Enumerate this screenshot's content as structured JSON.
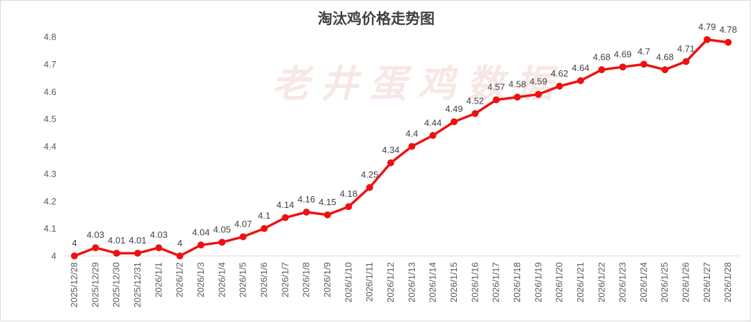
{
  "watermark": "老井蛋鸡数据",
  "chart_data": {
    "type": "line",
    "title": "淘汰鸡价格走势图",
    "xlabel": "",
    "ylabel": "",
    "ylim": [
      4,
      4.8
    ],
    "yticks": [
      "4",
      "4.1",
      "4.2",
      "4.3",
      "4.4",
      "4.5",
      "4.6",
      "4.7",
      "4.8"
    ],
    "grid": false,
    "legend": "none",
    "line_color": "#ee1111",
    "categories": [
      "2025/12/28",
      "2025/12/29",
      "2025/12/30",
      "2025/12/31",
      "2026/1/1",
      "2026/1/2",
      "2026/1/3",
      "2026/1/4",
      "2026/1/5",
      "2026/1/6",
      "2026/1/7",
      "2026/1/8",
      "2026/1/9",
      "2026/1/10",
      "2026/1/11",
      "2026/1/12",
      "2026/1/13",
      "2026/1/14",
      "2026/1/15",
      "2026/1/16",
      "2026/1/17",
      "2026/1/18",
      "2026/1/19",
      "2026/1/20",
      "2026/1/21",
      "2026/1/22",
      "2026/1/23",
      "2026/1/24",
      "2026/1/25",
      "2026/1/26",
      "2026/1/27",
      "2026/1/28"
    ],
    "values": [
      4,
      4.03,
      4.01,
      4.01,
      4.03,
      4,
      4.04,
      4.05,
      4.07,
      4.1,
      4.14,
      4.16,
      4.15,
      4.18,
      4.25,
      4.34,
      4.4,
      4.44,
      4.49,
      4.52,
      4.57,
      4.58,
      4.59,
      4.62,
      4.64,
      4.68,
      4.69,
      4.7,
      4.68,
      4.71,
      4.79,
      4.78
    ],
    "data_labels": [
      "4",
      "4.03",
      "4.01",
      "4.01",
      "4.03",
      "4",
      "4.04",
      "4.05",
      "4.07",
      "4.1",
      "4.14",
      "4.16",
      "4.15",
      "4.18",
      "4.25",
      "4.34",
      "4.4",
      "4.44",
      "4.49",
      "4.52",
      "4.57",
      "4.58",
      "4.59",
      "4.62",
      "4.64",
      "4.68",
      "4.69",
      "4.7",
      "4.68",
      "4.71",
      "4.79",
      "4.78"
    ]
  }
}
